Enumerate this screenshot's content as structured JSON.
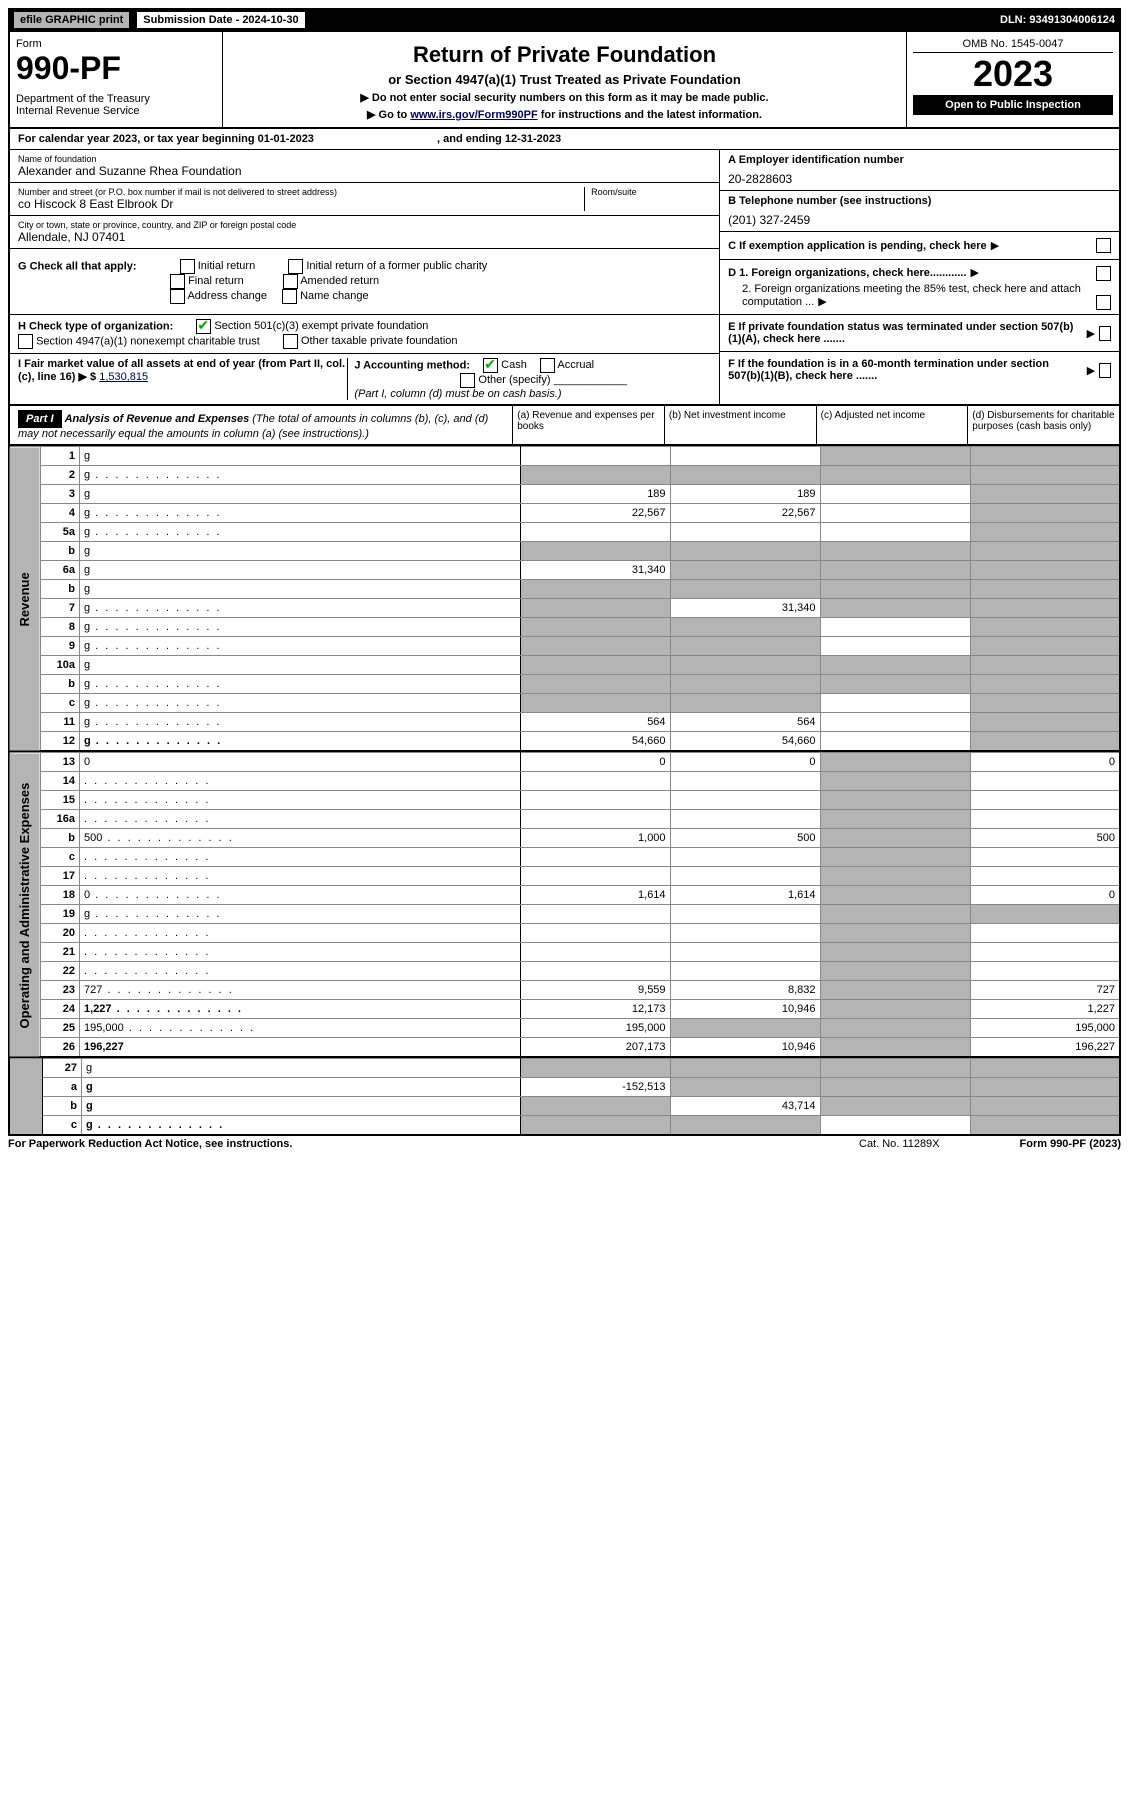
{
  "topbar": {
    "efile": "efile GRAPHIC print",
    "subdate_label": "Submission Date - 2024-10-30",
    "dln": "DLN: 93491304006124"
  },
  "header": {
    "form_label": "Form",
    "form_num": "990-PF",
    "dept": "Department of the Treasury",
    "irs": "Internal Revenue Service",
    "title": "Return of Private Foundation",
    "sub": "or Section 4947(a)(1) Trust Treated as Private Foundation",
    "note1": "▶ Do not enter social security numbers on this form as it may be made public.",
    "note2_pre": "▶ Go to ",
    "note2_link": "www.irs.gov/Form990PF",
    "note2_post": " for instructions and the latest information.",
    "omb": "OMB No. 1545-0047",
    "year": "2023",
    "inspect": "Open to Public Inspection"
  },
  "cal": {
    "line_pre": "For calendar year 2023, or tax year beginning ",
    "beg": "01-01-2023",
    "mid": ", and ending ",
    "end": "12-31-2023"
  },
  "info": {
    "name_label": "Name of foundation",
    "name": "Alexander and Suzanne Rhea Foundation",
    "addr_label": "Number and street (or P.O. box number if mail is not delivered to street address)",
    "addr": "co Hiscock 8 East Elbrook Dr",
    "room_label": "Room/suite",
    "city_label": "City or town, state or province, country, and ZIP or foreign postal code",
    "city": "Allendale, NJ  07401",
    "ein_label": "A Employer identification number",
    "ein": "20-2828603",
    "tele_label": "B Telephone number (see instructions)",
    "tele": "(201) 327-2459"
  },
  "checks": {
    "g_label": "G Check all that apply:",
    "g1": "Initial return",
    "g2": "Final return",
    "g3": "Address change",
    "g4": "Initial return of a former public charity",
    "g5": "Amended return",
    "g6": "Name change",
    "h_label": "H Check type of organization:",
    "h1": "Section 501(c)(3) exempt private foundation",
    "h2": "Section 4947(a)(1) nonexempt charitable trust",
    "h3": "Other taxable private foundation",
    "i_label": "I Fair market value of all assets at end of year (from Part II, col. (c), line 16) ▶ $ ",
    "i_val": "1,530,815",
    "j_label": "J Accounting method:",
    "j1": "Cash",
    "j2": "Accrual",
    "j3": "Other (specify)",
    "j_note": "(Part I, column (d) must be on cash basis.)",
    "c": "C If exemption application is pending, check here",
    "d1": "D 1. Foreign organizations, check here............",
    "d2": "2. Foreign organizations meeting the 85% test, check here and attach computation ...",
    "e": "E If private foundation status was terminated under section 507(b)(1)(A), check here .......",
    "f": "F If the foundation is in a 60-month termination under section 507(b)(1)(B), check here ......."
  },
  "partI": {
    "label": "Part I",
    "title": "Analysis of Revenue and Expenses",
    "subtitle": " (The total of amounts in columns (b), (c), and (d) may not necessarily equal the amounts in column (a) (see instructions).)",
    "col_a": "(a)   Revenue and expenses per books",
    "col_b": "(b)   Net investment income",
    "col_c": "(c)   Adjusted net income",
    "col_d": "(d)   Disbursements for charitable purposes (cash basis only)"
  },
  "vlabels": {
    "rev": "Revenue",
    "op": "Operating and Administrative Expenses"
  },
  "rows": [
    {
      "n": "1",
      "d": "g",
      "a": "",
      "b": "",
      "c": "g"
    },
    {
      "n": "2",
      "d": "g",
      "dots": true,
      "a": "g",
      "b": "g",
      "c": "g"
    },
    {
      "n": "3",
      "d": "g",
      "a": "189",
      "b": "189",
      "c": ""
    },
    {
      "n": "4",
      "d": "g",
      "dots": true,
      "a": "22,567",
      "b": "22,567",
      "c": ""
    },
    {
      "n": "5a",
      "d": "g",
      "dots": true,
      "a": "",
      "b": "",
      "c": ""
    },
    {
      "n": "b",
      "d": "g",
      "a": "g",
      "b": "g",
      "c": "g"
    },
    {
      "n": "6a",
      "d": "g",
      "a": "31,340",
      "b": "g",
      "c": "g"
    },
    {
      "n": "b",
      "d": "g",
      "a": "g",
      "b": "g",
      "c": "g"
    },
    {
      "n": "7",
      "d": "g",
      "dots": true,
      "a": "g",
      "b": "31,340",
      "c": "g"
    },
    {
      "n": "8",
      "d": "g",
      "dots": true,
      "a": "g",
      "b": "g",
      "c": ""
    },
    {
      "n": "9",
      "d": "g",
      "dots": true,
      "a": "g",
      "b": "g",
      "c": ""
    },
    {
      "n": "10a",
      "d": "g",
      "a": "g",
      "b": "g",
      "c": "g"
    },
    {
      "n": "b",
      "d": "g",
      "dots": true,
      "a": "g",
      "b": "g",
      "c": "g"
    },
    {
      "n": "c",
      "d": "g",
      "dots": true,
      "a": "g",
      "b": "g",
      "c": ""
    },
    {
      "n": "11",
      "d": "g",
      "dots": true,
      "a": "564",
      "b": "564",
      "c": ""
    },
    {
      "n": "12",
      "d": "g",
      "dots": true,
      "bold": true,
      "a": "54,660",
      "b": "54,660",
      "c": ""
    }
  ],
  "erows": [
    {
      "n": "13",
      "d": "0",
      "a": "0",
      "b": "0",
      "c": "g"
    },
    {
      "n": "14",
      "d": "",
      "dots": true,
      "a": "",
      "b": "",
      "c": "g"
    },
    {
      "n": "15",
      "d": "",
      "dots": true,
      "a": "",
      "b": "",
      "c": "g"
    },
    {
      "n": "16a",
      "d": "",
      "dots": true,
      "a": "",
      "b": "",
      "c": "g"
    },
    {
      "n": "b",
      "d": "500",
      "dots": true,
      "a": "1,000",
      "b": "500",
      "c": "g"
    },
    {
      "n": "c",
      "d": "",
      "dots": true,
      "a": "",
      "b": "",
      "c": "g"
    },
    {
      "n": "17",
      "d": "",
      "dots": true,
      "a": "",
      "b": "",
      "c": "g"
    },
    {
      "n": "18",
      "d": "0",
      "dots": true,
      "a": "1,614",
      "b": "1,614",
      "c": "g"
    },
    {
      "n": "19",
      "d": "g",
      "dots": true,
      "a": "",
      "b": "",
      "c": "g"
    },
    {
      "n": "20",
      "d": "",
      "dots": true,
      "a": "",
      "b": "",
      "c": "g"
    },
    {
      "n": "21",
      "d": "",
      "dots": true,
      "a": "",
      "b": "",
      "c": "g"
    },
    {
      "n": "22",
      "d": "",
      "dots": true,
      "a": "",
      "b": "",
      "c": "g"
    },
    {
      "n": "23",
      "d": "727",
      "dots": true,
      "a": "9,559",
      "b": "8,832",
      "c": "g"
    },
    {
      "n": "24",
      "d": "1,227",
      "dots": true,
      "bold": true,
      "a": "12,173",
      "b": "10,946",
      "c": "g"
    },
    {
      "n": "25",
      "d": "195,000",
      "dots": true,
      "a": "195,000",
      "b": "g",
      "c": "g"
    },
    {
      "n": "26",
      "d": "196,227",
      "bold": true,
      "a": "207,173",
      "b": "10,946",
      "c": "g"
    }
  ],
  "srows": [
    {
      "n": "27",
      "d": "g",
      "a": "g",
      "b": "g",
      "c": "g"
    },
    {
      "n": "a",
      "d": "g",
      "bold": true,
      "a": "-152,513",
      "b": "g",
      "c": "g"
    },
    {
      "n": "b",
      "d": "g",
      "bold": true,
      "a": "g",
      "b": "43,714",
      "c": "g"
    },
    {
      "n": "c",
      "d": "g",
      "dots": true,
      "bold": true,
      "a": "g",
      "b": "g",
      "c": ""
    }
  ],
  "footer": {
    "left": "For Paperwork Reduction Act Notice, see instructions.",
    "mid": "Cat. No. 11289X",
    "right": "Form 990-PF (2023)"
  }
}
